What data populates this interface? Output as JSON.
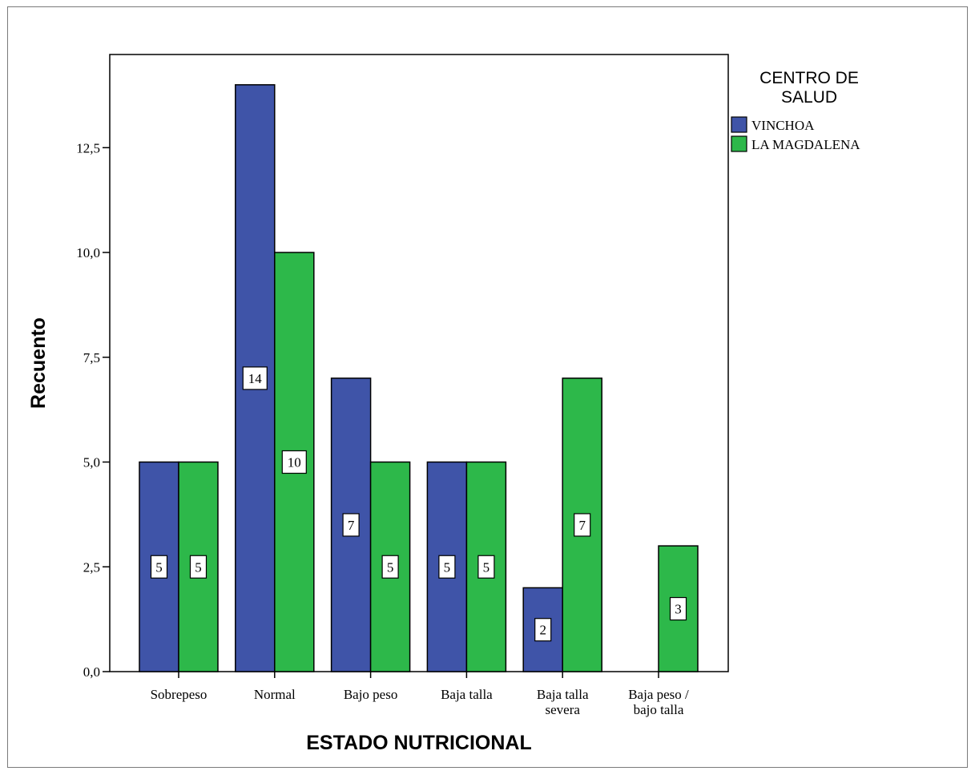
{
  "chart_data": {
    "type": "bar",
    "categories": [
      "Sobrepeso",
      "Normal",
      "Bajo peso",
      "Baja talla",
      "Baja talla severa",
      "Baja peso / bajo talla"
    ],
    "category_lines": [
      [
        "Sobrepeso"
      ],
      [
        "Normal"
      ],
      [
        "Bajo peso"
      ],
      [
        "Baja talla"
      ],
      [
        "Baja talla",
        "severa"
      ],
      [
        "Baja peso /",
        "bajo talla"
      ]
    ],
    "series": [
      {
        "name": "VINCHOA",
        "values": [
          5,
          14,
          7,
          5,
          2,
          0
        ],
        "color": "#3f54a8"
      },
      {
        "name": "LA MAGDALENA",
        "values": [
          5,
          10,
          5,
          5,
          7,
          3
        ],
        "color": "#2db84a"
      }
    ],
    "data_labels": [
      [
        "5",
        "14",
        "7",
        "5",
        "2",
        ""
      ],
      [
        "5",
        "10",
        "5",
        "5",
        "7",
        "3"
      ]
    ],
    "title": "",
    "xlabel": "ESTADO NUTRICIONAL",
    "ylabel": "Recuento",
    "ylim": [
      0,
      14.5
    ],
    "yticks": [
      0,
      2.5,
      5,
      7.5,
      10,
      12.5
    ],
    "ytick_labels": [
      "0,0",
      "2,5",
      "5,0",
      "7,5",
      "10,0",
      "12,5"
    ],
    "legend": {
      "title_lines": [
        "CENTRO DE",
        "SALUD"
      ],
      "position": "top-right, outside plot"
    },
    "grid": false
  }
}
